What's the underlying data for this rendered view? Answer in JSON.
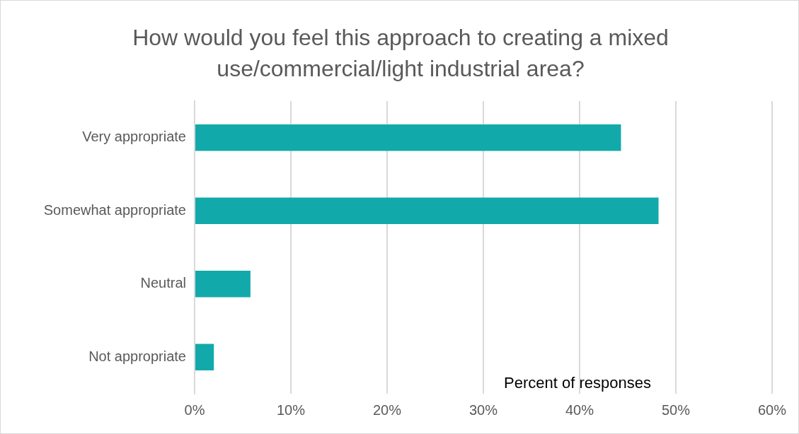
{
  "chart_data": {
    "type": "bar",
    "orientation": "horizontal",
    "title": "How would you feel this approach to creating a mixed use/commercial/light industrial area?",
    "xlabel": "Percent of responses",
    "categories": [
      "Very appropriate",
      "Somewhat appropriate",
      "Neutral",
      "Not appropriate"
    ],
    "values": [
      44.3,
      48.2,
      5.8,
      2.0
    ],
    "color": "#12a9ab",
    "xlim": [
      0,
      60
    ],
    "xticks": [
      {
        "value": 0,
        "label": "0%"
      },
      {
        "value": 10,
        "label": "10%"
      },
      {
        "value": 20,
        "label": "20%"
      },
      {
        "value": 30,
        "label": "30%"
      },
      {
        "value": 40,
        "label": "40%"
      },
      {
        "value": 50,
        "label": "50%"
      },
      {
        "value": 60,
        "label": "60%"
      }
    ],
    "grid": "x",
    "legend": false
  }
}
